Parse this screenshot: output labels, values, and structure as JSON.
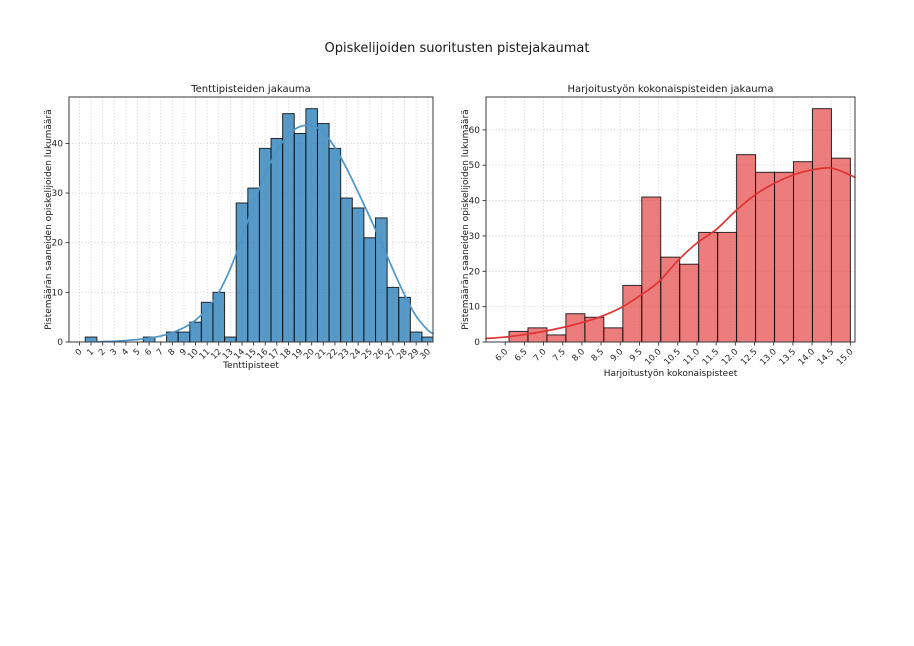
{
  "figure": {
    "title": "Opiskelijoiden suoritusten pistejakaumat",
    "background": "#ffffff",
    "grid_color": "#c9c9c9",
    "spine_color": "#3a3a3a"
  },
  "chart_data": [
    {
      "type": "bar",
      "subtype": "histogram_with_kde",
      "title": "Tenttipisteiden jakauma",
      "xlabel": "Tenttipisteet",
      "ylabel": "Pistemäärän saaneiden opiskelijoiden lukumäärä",
      "bar_fill": "rgba(31,119,180,0.75)",
      "bar_edge": "rgba(10,10,10,0.85)",
      "kde_color": "#4c96ca",
      "bins": {
        "mode": "centers",
        "width": 1,
        "centers": [
          0,
          1,
          2,
          3,
          4,
          5,
          6,
          7,
          8,
          9,
          10,
          11,
          12,
          13,
          14,
          15,
          16,
          17,
          18,
          19,
          20,
          21,
          22,
          23,
          24,
          25,
          26,
          27,
          28,
          29,
          30
        ],
        "counts": [
          0,
          1,
          0,
          0,
          0,
          0,
          1,
          0,
          2,
          2,
          4,
          8,
          10,
          1,
          28,
          31,
          39,
          41,
          46,
          42,
          47,
          44,
          39,
          29,
          27,
          21,
          25,
          11,
          9,
          2,
          1
        ]
      },
      "xtick_labels": [
        "0",
        "1",
        "2",
        "3",
        "4",
        "5",
        "6",
        "7",
        "8",
        "9",
        "10",
        "11",
        "12",
        "13",
        "14",
        "15",
        "16",
        "17",
        "18",
        "19",
        "20",
        "21",
        "22",
        "23",
        "24",
        "25",
        "26",
        "27",
        "28",
        "29",
        "30"
      ],
      "ytick_values": [
        0,
        10,
        20,
        30,
        40
      ],
      "xlim": [
        -0.9,
        30.45
      ],
      "ylim": [
        0,
        49.35
      ],
      "grid": true,
      "legend": "none",
      "kde_points": [
        [
          1.5,
          0.05
        ],
        [
          3,
          0.15
        ],
        [
          4,
          0.3
        ],
        [
          5,
          0.5
        ],
        [
          6,
          0.8
        ],
        [
          7,
          1.2
        ],
        [
          8,
          1.9
        ],
        [
          9,
          2.9
        ],
        [
          10,
          4.4
        ],
        [
          11,
          6.7
        ],
        [
          12,
          10
        ],
        [
          13,
          14.8
        ],
        [
          14,
          21
        ],
        [
          15,
          27.8
        ],
        [
          16,
          33.8
        ],
        [
          17,
          38.5
        ],
        [
          18,
          41.8
        ],
        [
          19,
          43.4
        ],
        [
          20,
          43.6
        ],
        [
          21,
          42.3
        ],
        [
          22,
          39.2
        ],
        [
          23,
          35
        ],
        [
          24,
          30.2
        ],
        [
          25,
          25.2
        ],
        [
          26,
          20
        ],
        [
          27,
          14.6
        ],
        [
          28,
          9.5
        ],
        [
          29,
          5.2
        ],
        [
          30,
          2.4
        ],
        [
          30.45,
          1.7
        ]
      ]
    },
    {
      "type": "bar",
      "subtype": "histogram_with_kde",
      "title": "Harjoitustyön kokonaispisteiden jakauma",
      "xlabel": "Harjoitustyön kokonaispisteet",
      "ylabel": "Pistemäärän saaneiden opiskelijoiden lukumäärä",
      "bar_fill": "rgba(227,48,48,0.63)",
      "bar_edge": "rgba(10,10,10,0.85)",
      "kde_color": "#e03232",
      "bins": {
        "mode": "edges",
        "edges": [
          6.1,
          6.594,
          7.089,
          7.583,
          8.078,
          8.572,
          9.067,
          9.561,
          10.056,
          10.55,
          11.044,
          11.539,
          12.033,
          12.528,
          13.022,
          13.517,
          14.011,
          14.506,
          15.0
        ],
        "counts": [
          3,
          4,
          2,
          8,
          7,
          4,
          16,
          41,
          24,
          22,
          31,
          31,
          53,
          48,
          48,
          51,
          66,
          52
        ]
      },
      "xtick_labels": [
        "6.0",
        "6.5",
        "7.0",
        "7.5",
        "8.0",
        "8.5",
        "9.0",
        "9.5",
        "10.0",
        "10.5",
        "11.0",
        "11.5",
        "12.0",
        "12.5",
        "13.0",
        "13.5",
        "14.0",
        "14.5",
        "15.0"
      ],
      "ytick_values": [
        0,
        10,
        20,
        30,
        40,
        50,
        60
      ],
      "xlim": [
        5.5,
        15.12
      ],
      "ylim": [
        0,
        69.3
      ],
      "grid": true,
      "legend": "none",
      "kde_points": [
        [
          5.5,
          1.0
        ],
        [
          6,
          1.4
        ],
        [
          6.5,
          2.1
        ],
        [
          7,
          3.0
        ],
        [
          7.5,
          4.1
        ],
        [
          8,
          5.5
        ],
        [
          8.5,
          7.2
        ],
        [
          9,
          9.6
        ],
        [
          9.5,
          13
        ],
        [
          10,
          17
        ],
        [
          10.5,
          23
        ],
        [
          11,
          28
        ],
        [
          11.5,
          31.8
        ],
        [
          12,
          37
        ],
        [
          12.5,
          41.5
        ],
        [
          13,
          44.8
        ],
        [
          13.5,
          47.2
        ],
        [
          14,
          48.7
        ],
        [
          14.5,
          49.2
        ],
        [
          15,
          47.2
        ],
        [
          15.12,
          46.5
        ]
      ]
    }
  ]
}
